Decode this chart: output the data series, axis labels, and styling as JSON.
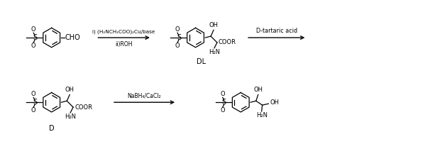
{
  "bg_color": "#ffffff",
  "fig_width": 6.06,
  "fig_height": 2.1,
  "dpi": 100,
  "reagent1a": "i) (H₂NCH₂COO)₂Cu/base",
  "reagent1b": "ii)ROH",
  "reagent2": "D-tartaric acid",
  "reagent3": "NaBH₄/CaCl₂",
  "label_DL": "DL",
  "label_D": "D",
  "text_CHO": "CHO",
  "text_OH": "OH",
  "text_COOR": "COOR",
  "text_H2N": "H₂N",
  "text_S": "S",
  "text_O": "O"
}
